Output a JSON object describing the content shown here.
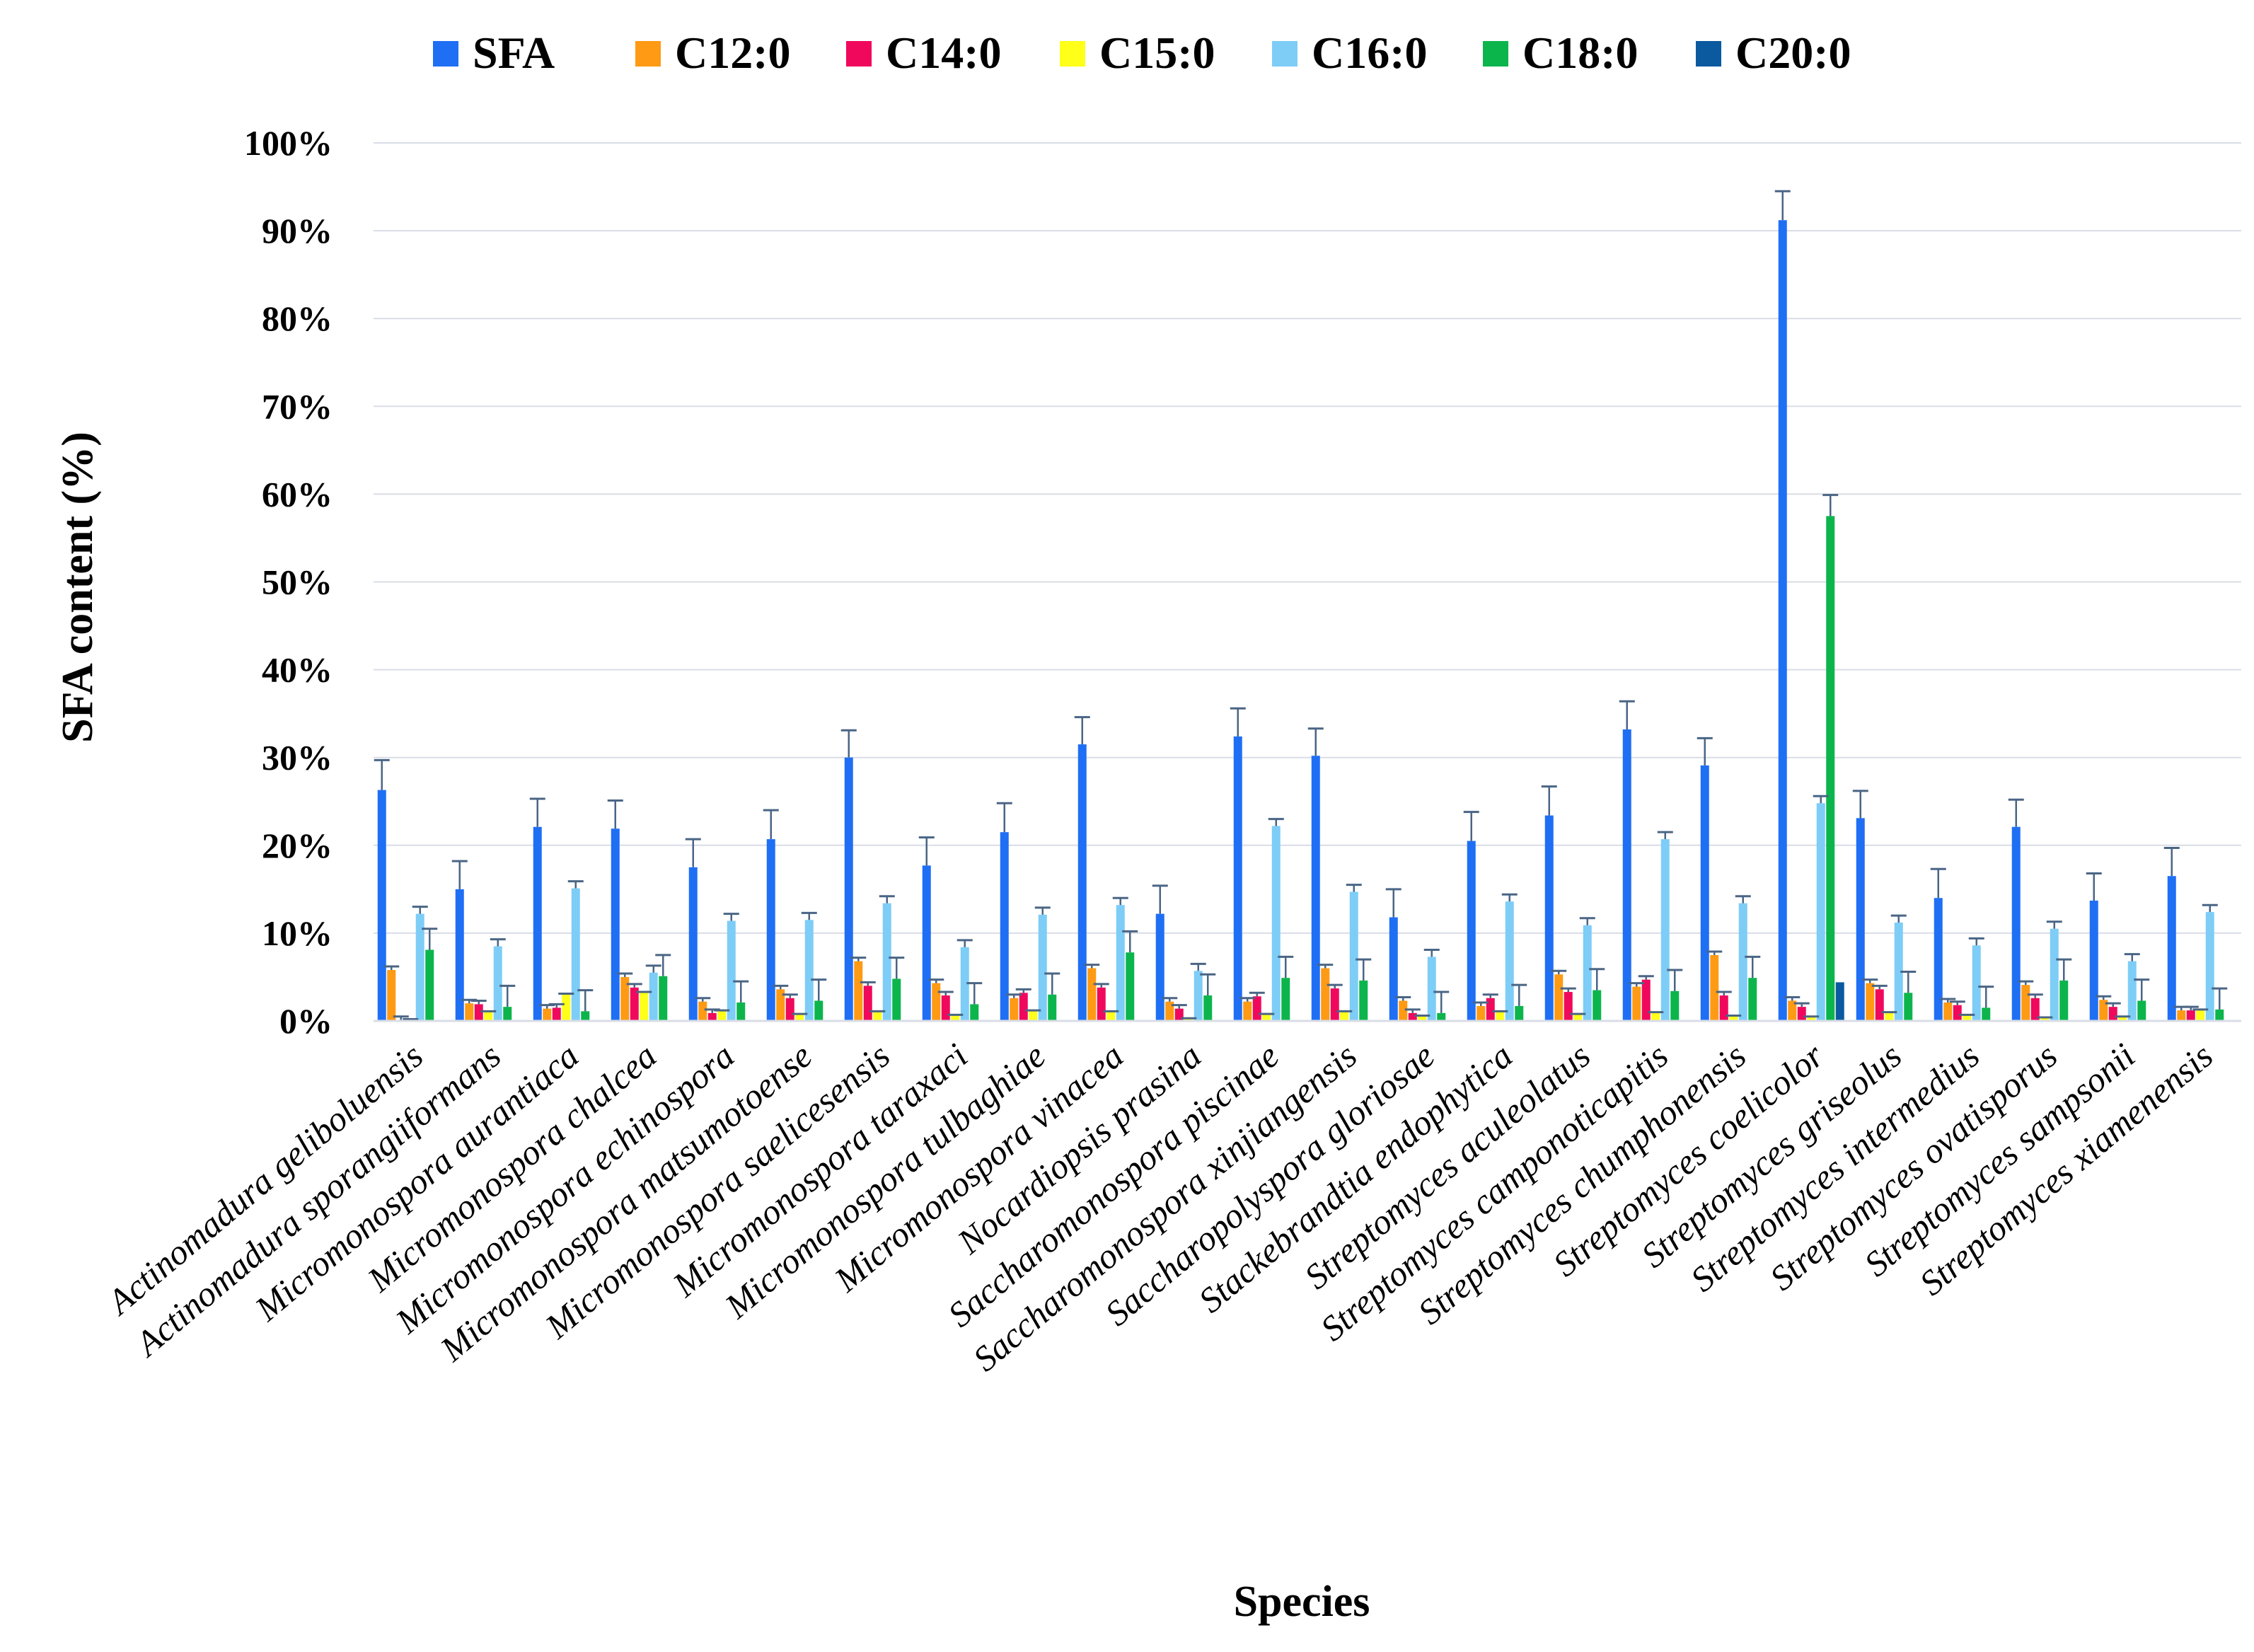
{
  "chart_data": {
    "type": "bar",
    "title": "",
    "xlabel": "Species",
    "ylabel": "SFA content (%)",
    "ylim": [
      0,
      100
    ],
    "yticks": [
      "0%",
      "10%",
      "20%",
      "30%",
      "40%",
      "50%",
      "60%",
      "70%",
      "80%",
      "90%",
      "100%"
    ],
    "legend_position": "top",
    "categories": [
      "Actinomadura geliboluensis",
      "Actinomadura sporangiiformans",
      "Micromonospora aurantiaca",
      "Micromonospora chalcea",
      "Micromonospora echinospora",
      "Micromonospora matsumotoense",
      "Micromonospora saelicesensis",
      "Micromonospora taraxaci",
      "Micromonospora tulbaghiae",
      "Micromonospora vinacea",
      "Nocardiopsis prasina",
      "Saccharomonospora piscinae",
      "Saccharomonospora xinjiangensis",
      "Saccharopolyspora gloriosae",
      "Stackebrandtia endophytica",
      "Streptomyces aculeolatus",
      "Streptomyces camponoticapitis",
      "Streptomyces chumphonensis",
      "Streptomyces coelicolor",
      "Streptomyces griseolus",
      "Streptomyces intermedius",
      "Streptomyces ovatisporus",
      "Streptomyces sampsonii",
      "Streptomyces xiamenensis"
    ],
    "series": [
      {
        "name": "SFA",
        "color": "#1f6ff5",
        "values": [
          26.3,
          15,
          22.1,
          21.9,
          17.5,
          20.7,
          30,
          17.7,
          21.5,
          31.5,
          12.2,
          32.4,
          30.2,
          11.8,
          20.5,
          23.4,
          33.2,
          29.1,
          91.2,
          23.1,
          14,
          22.1,
          13.7,
          16.5
        ],
        "errors": [
          3.4,
          3.2,
          3.2,
          3.2,
          3.2,
          3.3,
          3.1,
          3.2,
          3.3,
          3.1,
          3.2,
          3.2,
          3.1,
          3.2,
          3.3,
          3.3,
          3.2,
          3.1,
          3.3,
          3.1,
          3.3,
          3.1,
          3.1,
          3.2
        ]
      },
      {
        "name": "C12:0",
        "color": "#ff9a14",
        "values": [
          5.8,
          2,
          1.4,
          5,
          2.2,
          3.6,
          6.8,
          4.3,
          2.6,
          6,
          2.2,
          2.2,
          6,
          2.3,
          1.7,
          5.3,
          3.9,
          7.5,
          2.3,
          4.3,
          2.1,
          4.1,
          2.4,
          1.2
        ],
        "errors": [
          0.4,
          0.4,
          0.4,
          0.4,
          0.4,
          0.4,
          0.4,
          0.4,
          0.4,
          0.4,
          0.4,
          0.4,
          0.4,
          0.4,
          0.4,
          0.4,
          0.4,
          0.4,
          0.4,
          0.4,
          0.4,
          0.4,
          0.4,
          0.4
        ]
      },
      {
        "name": "C14:0",
        "color": "#f0085c",
        "values": [
          0.1,
          1.9,
          1.5,
          3.8,
          0.9,
          2.6,
          4,
          2.9,
          3.2,
          3.8,
          1.4,
          2.8,
          3.7,
          0.9,
          2.6,
          3.3,
          4.7,
          2.9,
          1.6,
          3.6,
          1.8,
          2.6,
          1.6,
          1.2
        ],
        "errors": [
          0.4,
          0.4,
          0.4,
          0.4,
          0.4,
          0.4,
          0.4,
          0.4,
          0.4,
          0.4,
          0.4,
          0.4,
          0.4,
          0.4,
          0.4,
          0.4,
          0.4,
          0.4,
          0.4,
          0.4,
          0.4,
          0.4,
          0.4,
          0.4
        ]
      },
      {
        "name": "C15:0",
        "color": "#ffff1a",
        "values": [
          0.1,
          1,
          3,
          3.2,
          1.1,
          0.7,
          1,
          0.6,
          1.1,
          1,
          0.2,
          0.7,
          1,
          0.5,
          1,
          0.7,
          0.9,
          0.5,
          0.4,
          0.9,
          0.6,
          0.3,
          0.4,
          1.2
        ],
        "errors": [
          0.1,
          0.1,
          0.1,
          0.1,
          0.1,
          0.1,
          0.1,
          0.1,
          0.1,
          0.1,
          0.1,
          0.1,
          0.1,
          0.1,
          0.1,
          0.1,
          0.1,
          0.1,
          0.1,
          0.1,
          0.1,
          0.1,
          0.1,
          0.1
        ]
      },
      {
        "name": "C16:0",
        "color": "#7dcdf7",
        "values": [
          12.2,
          8.5,
          15.1,
          5.5,
          11.4,
          11.5,
          13.4,
          8.4,
          12.1,
          13.2,
          5.7,
          22.2,
          14.7,
          7.3,
          13.6,
          10.9,
          20.7,
          13.4,
          24.8,
          11.2,
          8.6,
          10.5,
          6.8,
          12.4
        ],
        "errors": [
          0.8,
          0.8,
          0.8,
          0.8,
          0.8,
          0.8,
          0.8,
          0.8,
          0.8,
          0.8,
          0.8,
          0.8,
          0.8,
          0.8,
          0.8,
          0.8,
          0.8,
          0.8,
          0.8,
          0.8,
          0.8,
          0.8,
          0.8,
          0.8
        ]
      },
      {
        "name": "C18:0",
        "color": "#0cb54c",
        "values": [
          8.1,
          1.6,
          1.1,
          5.1,
          2.1,
          2.3,
          4.8,
          1.9,
          3,
          7.8,
          2.9,
          4.9,
          4.6,
          0.9,
          1.7,
          3.5,
          3.4,
          4.9,
          57.5,
          3.2,
          1.5,
          4.6,
          2.3,
          1.3
        ],
        "errors": [
          2.4,
          2.4,
          2.4,
          2.4,
          2.4,
          2.4,
          2.4,
          2.4,
          2.4,
          2.4,
          2.4,
          2.4,
          2.4,
          2.4,
          2.4,
          2.4,
          2.4,
          2.4,
          2.4,
          2.4,
          2.4,
          2.4,
          2.4,
          2.4
        ]
      },
      {
        "name": "C20:0",
        "color": "#0b5aa0",
        "values": [
          0,
          0,
          0,
          0,
          0,
          0,
          0,
          0,
          0,
          0,
          0,
          0,
          0,
          0,
          0,
          0,
          0,
          0,
          4.4,
          0,
          0,
          0,
          0,
          0
        ],
        "errors": [
          0,
          0,
          0,
          0,
          0,
          0,
          0,
          0,
          0,
          0,
          0,
          0,
          0,
          0,
          0,
          0,
          0,
          0,
          0,
          0,
          0,
          0,
          0,
          0
        ]
      }
    ],
    "error_bar_color": "#4a6585",
    "grid_color": "#d9dde6"
  }
}
